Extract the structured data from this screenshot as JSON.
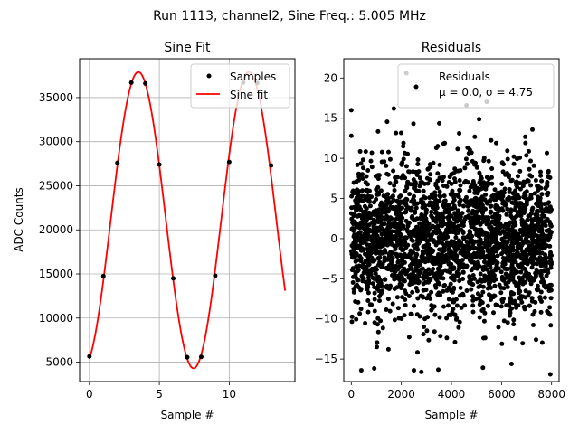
{
  "figure": {
    "suptitle": "Run 1113, channel2, Sine Freq.: 5.005 MHz"
  },
  "chart_data": [
    {
      "type": "line",
      "title": "Sine Fit",
      "xlabel": "Sample #",
      "ylabel": "ADC Counts",
      "xlim": [
        -0.7,
        14.7
      ],
      "ylim": [
        2800,
        39400
      ],
      "xticks": [
        0,
        5,
        10
      ],
      "yticks": [
        5000,
        10000,
        15000,
        20000,
        25000,
        30000,
        35000
      ],
      "grid": true,
      "legend": {
        "placement": "top-right",
        "entries": [
          "Samples",
          "Sine fit"
        ]
      },
      "series": [
        {
          "name": "Samples",
          "kind": "scatter",
          "color": "#000000",
          "x": [
            0,
            1,
            2,
            3,
            4,
            5,
            6,
            7,
            8,
            9,
            10,
            11,
            12,
            13
          ],
          "y": [
            5650,
            14750,
            27600,
            36700,
            36600,
            27400,
            14500,
            5550,
            5600,
            14800,
            27700,
            36700,
            36650,
            27300
          ]
        },
        {
          "name": "Sine fit",
          "kind": "line",
          "color": "#ff0000",
          "x_range": [
            0,
            14
          ],
          "amplitude": 16800,
          "offset": 21100,
          "period": 7.9,
          "peak_x": 3.5
        }
      ]
    },
    {
      "type": "scatter",
      "title": "Residuals",
      "xlabel": "Sample #",
      "ylabel": "",
      "xlim": [
        -300,
        8300
      ],
      "ylim": [
        -17.8,
        22.4
      ],
      "xticks": [
        0,
        2000,
        4000,
        6000,
        8000
      ],
      "yticks": [
        -15,
        -10,
        -5,
        0,
        5,
        10,
        15,
        20
      ],
      "grid": false,
      "legend": {
        "placement": "top-right",
        "entries": [
          "Residuals",
          "μ = 0.0, σ = 4.75"
        ]
      },
      "series": [
        {
          "name": "Residuals",
          "color": "#000000",
          "n_points": 8000,
          "x_range": [
            0,
            8000
          ],
          "mean": 0.0,
          "sigma": 4.75,
          "y_range": [
            -17,
            21
          ],
          "highlighted_points": [
            {
              "x": 0,
              "y": 16
            },
            {
              "x": 0,
              "y": 12.8
            },
            {
              "x": 2200,
              "y": 20.6
            },
            {
              "x": 1700,
              "y": 16.2
            },
            {
              "x": 4600,
              "y": 16.6
            },
            {
              "x": 7950,
              "y": -16.9
            },
            {
              "x": 400,
              "y": -16.4
            },
            {
              "x": 2800,
              "y": -16.6
            },
            {
              "x": 2500,
              "y": -16.4
            },
            {
              "x": 6400,
              "y": -15.6
            }
          ]
        }
      ]
    }
  ]
}
